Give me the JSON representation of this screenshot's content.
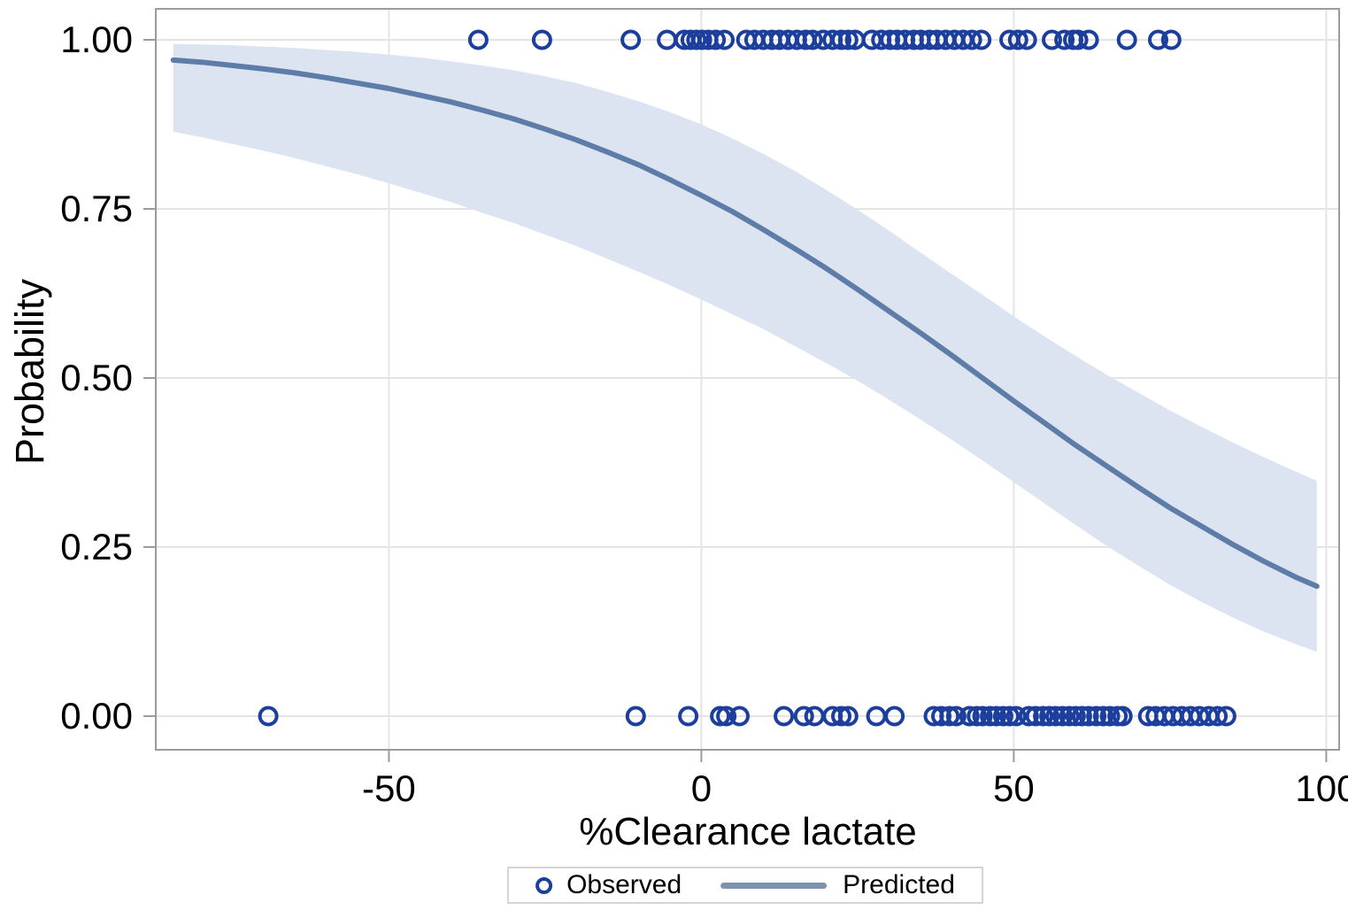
{
  "chart_data": {
    "type": "scatter",
    "subtype": "logistic-regression-fit-with-confidence-band",
    "title": "",
    "xlabel": "%Clearance lactate",
    "ylabel": "Probability",
    "xlim": [
      -87.3,
      102.1
    ],
    "ylim": [
      -0.05,
      1.046
    ],
    "grid": true,
    "legend": {
      "position": "bottom",
      "observed_label": "Observed",
      "predicted_label": "Predicted"
    },
    "x_ticks": [
      {
        "value": -50,
        "label": "-50"
      },
      {
        "value": 0,
        "label": "0"
      },
      {
        "value": 50,
        "label": "50"
      },
      {
        "value": 100,
        "label": "100"
      }
    ],
    "y_ticks": [
      {
        "value": 1.0,
        "label": "1.00"
      },
      {
        "value": 0.75,
        "label": "0.75"
      },
      {
        "value": 0.5,
        "label": "0.50"
      },
      {
        "value": 0.25,
        "label": "0.25"
      },
      {
        "value": 0.0,
        "label": "0.00"
      }
    ],
    "colors": {
      "observed": "#1c3e9c",
      "predicted": "#5d7ca8",
      "band": "#dce4f1",
      "grid": "#e4e4e4",
      "frame": "#9b9b9b",
      "text": "#000000"
    },
    "series": {
      "observed_y1": {
        "name": "Observed (outcome = 1)",
        "y": 1.0,
        "x": [
          -35.7,
          -25.5,
          -11.3,
          -5.5,
          -2.7,
          -1.7,
          -0.8,
          0.1,
          1.1,
          2.3,
          3.7,
          7.2,
          8.5,
          9.9,
          11.3,
          12.5,
          13.9,
          15.3,
          16.7,
          17.8,
          19.5,
          21.0,
          22.4,
          23.5,
          24.6,
          27.3,
          28.8,
          30.2,
          31.3,
          32.6,
          34.0,
          35.1,
          36.5,
          37.7,
          39.1,
          40.5,
          41.9,
          43.3,
          44.8,
          49.3,
          50.7,
          52.1,
          56.1,
          58.1,
          59.5,
          60.3,
          62.0,
          68.1,
          73.1,
          75.2
        ]
      },
      "observed_y0": {
        "name": "Observed (outcome = 0)",
        "y": 0.0,
        "x": [
          -69.3,
          -10.5,
          -2.1,
          3.0,
          4.0,
          6.1,
          13.2,
          16.4,
          18.1,
          21.0,
          22.4,
          23.5,
          28.0,
          30.9,
          37.2,
          38.4,
          39.7,
          40.8,
          42.9,
          44.1,
          45.0,
          46.2,
          47.2,
          48.3,
          49.3,
          50.4,
          52.4,
          53.5,
          54.7,
          55.7,
          56.7,
          57.8,
          58.9,
          59.9,
          60.9,
          62.0,
          63.2,
          64.3,
          65.4,
          66.6,
          67.4,
          71.5,
          72.7,
          74.1,
          75.5,
          76.9,
          78.3,
          79.7,
          81.2,
          82.6,
          84.0
        ]
      },
      "predicted": {
        "name": "Predicted",
        "points": [
          {
            "x": -84.5,
            "p": 0.97,
            "lo": 0.864,
            "hi": 0.994
          },
          {
            "x": -80,
            "p": 0.967,
            "lo": 0.856,
            "hi": 0.993
          },
          {
            "x": -75,
            "p": 0.962,
            "lo": 0.846,
            "hi": 0.992
          },
          {
            "x": -70,
            "p": 0.957,
            "lo": 0.836,
            "hi": 0.99
          },
          {
            "x": -65,
            "p": 0.951,
            "lo": 0.825,
            "hi": 0.988
          },
          {
            "x": -60,
            "p": 0.944,
            "lo": 0.813,
            "hi": 0.985
          },
          {
            "x": -55,
            "p": 0.936,
            "lo": 0.801,
            "hi": 0.982
          },
          {
            "x": -50,
            "p": 0.928,
            "lo": 0.788,
            "hi": 0.978
          },
          {
            "x": -45,
            "p": 0.918,
            "lo": 0.774,
            "hi": 0.974
          },
          {
            "x": -40,
            "p": 0.908,
            "lo": 0.76,
            "hi": 0.968
          },
          {
            "x": -35,
            "p": 0.896,
            "lo": 0.744,
            "hi": 0.962
          },
          {
            "x": -30,
            "p": 0.883,
            "lo": 0.729,
            "hi": 0.955
          },
          {
            "x": -25,
            "p": 0.868,
            "lo": 0.712,
            "hi": 0.946
          },
          {
            "x": -20,
            "p": 0.852,
            "lo": 0.695,
            "hi": 0.936
          },
          {
            "x": -15,
            "p": 0.834,
            "lo": 0.676,
            "hi": 0.923
          },
          {
            "x": -10,
            "p": 0.815,
            "lo": 0.657,
            "hi": 0.909
          },
          {
            "x": -5,
            "p": 0.793,
            "lo": 0.637,
            "hi": 0.893
          },
          {
            "x": 0,
            "p": 0.77,
            "lo": 0.616,
            "hi": 0.875
          },
          {
            "x": 5,
            "p": 0.746,
            "lo": 0.594,
            "hi": 0.854
          },
          {
            "x": 10,
            "p": 0.719,
            "lo": 0.572,
            "hi": 0.831
          },
          {
            "x": 15,
            "p": 0.691,
            "lo": 0.547,
            "hi": 0.806
          },
          {
            "x": 20,
            "p": 0.662,
            "lo": 0.522,
            "hi": 0.778
          },
          {
            "x": 25,
            "p": 0.631,
            "lo": 0.496,
            "hi": 0.749
          },
          {
            "x": 30,
            "p": 0.599,
            "lo": 0.468,
            "hi": 0.718
          },
          {
            "x": 35,
            "p": 0.567,
            "lo": 0.439,
            "hi": 0.686
          },
          {
            "x": 40,
            "p": 0.534,
            "lo": 0.409,
            "hi": 0.654
          },
          {
            "x": 45,
            "p": 0.5,
            "lo": 0.378,
            "hi": 0.623
          },
          {
            "x": 50,
            "p": 0.466,
            "lo": 0.346,
            "hi": 0.591
          },
          {
            "x": 55,
            "p": 0.433,
            "lo": 0.314,
            "hi": 0.561
          },
          {
            "x": 60,
            "p": 0.4,
            "lo": 0.282,
            "hi": 0.532
          },
          {
            "x": 65,
            "p": 0.369,
            "lo": 0.251,
            "hi": 0.504
          },
          {
            "x": 70,
            "p": 0.338,
            "lo": 0.222,
            "hi": 0.478
          },
          {
            "x": 75,
            "p": 0.308,
            "lo": 0.194,
            "hi": 0.452
          },
          {
            "x": 80,
            "p": 0.281,
            "lo": 0.169,
            "hi": 0.428
          },
          {
            "x": 85,
            "p": 0.254,
            "lo": 0.146,
            "hi": 0.405
          },
          {
            "x": 90,
            "p": 0.229,
            "lo": 0.125,
            "hi": 0.383
          },
          {
            "x": 95,
            "p": 0.206,
            "lo": 0.107,
            "hi": 0.362
          },
          {
            "x": 98.5,
            "p": 0.192,
            "lo": 0.095,
            "hi": 0.348
          }
        ]
      }
    }
  }
}
